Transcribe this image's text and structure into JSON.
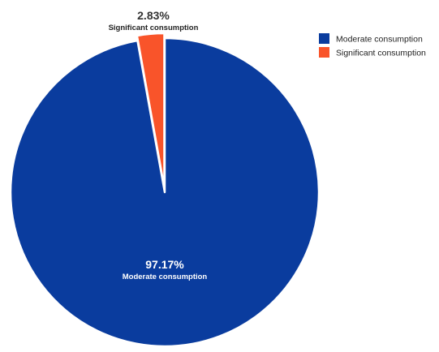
{
  "chart_data": {
    "type": "pie",
    "slices": [
      {
        "name": "Moderate consumption",
        "value": 97.17,
        "label": "97.17%",
        "color": "#0a3c9e"
      },
      {
        "name": "Significant consumption",
        "value": 2.83,
        "label": "2.83%",
        "color": "#f9542a"
      }
    ],
    "legend": {
      "placement": "top-right",
      "entries": [
        "Moderate consumption",
        "Significant consumption"
      ]
    }
  }
}
